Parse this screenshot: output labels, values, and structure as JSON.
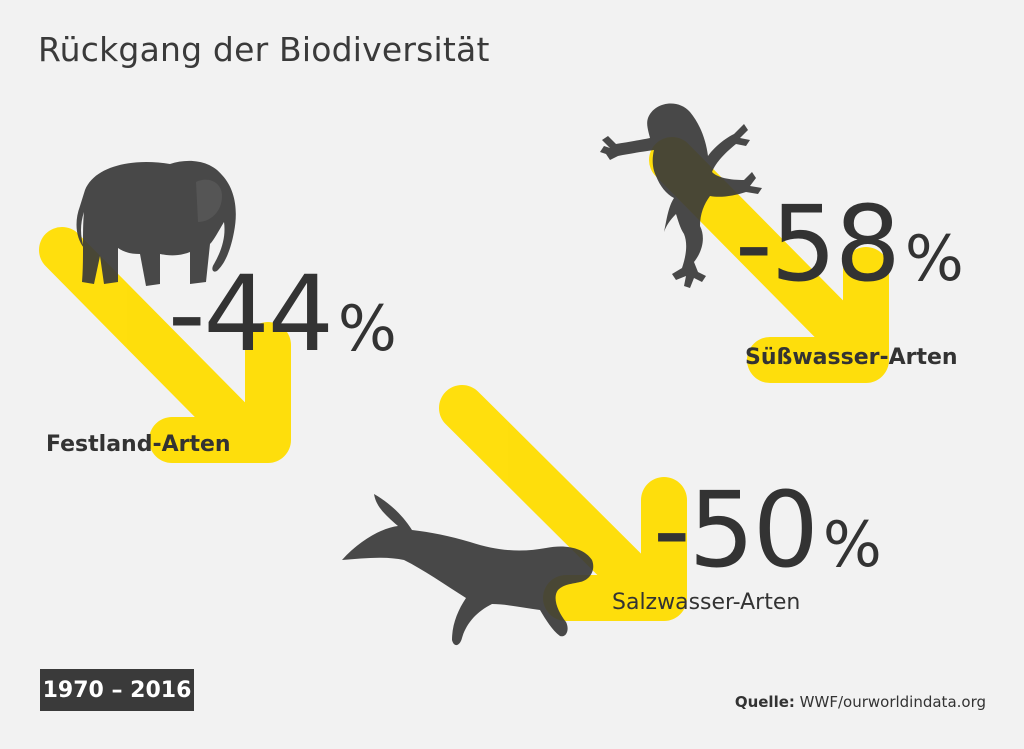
{
  "title": "Rückgang der Biodiversität",
  "colors": {
    "accent": "#ffdd00",
    "silhouette": "#3a3a3a",
    "background": "#f2f2f2"
  },
  "groups": [
    {
      "id": "land",
      "value": "-44",
      "unit": "%",
      "label": "Festland-Arten",
      "icon": "elephant-icon"
    },
    {
      "id": "freshwater",
      "value": "-58",
      "unit": "%",
      "label": "Süßwasser-Arten",
      "icon": "frog-icon"
    },
    {
      "id": "saltwater",
      "value": "-50",
      "unit": "%",
      "label": "Salzwasser-Arten",
      "icon": "whale-icon"
    }
  ],
  "period": "1970 – 2016",
  "source": {
    "label": "Quelle:",
    "text": "WWF/ourworldindata.org"
  }
}
